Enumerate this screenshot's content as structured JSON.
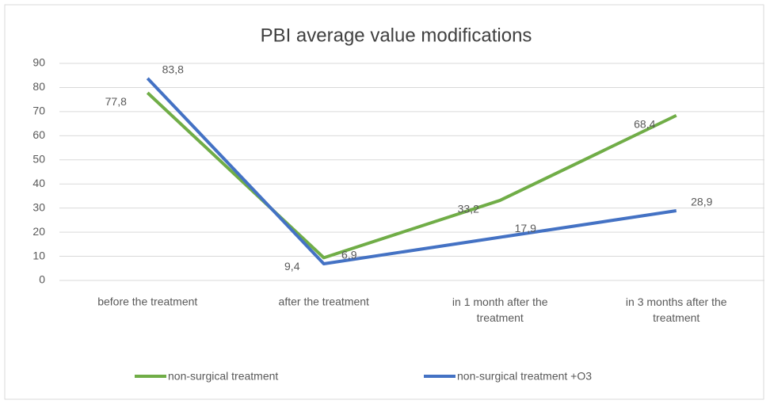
{
  "chart_data": {
    "type": "line",
    "title": "PBI average value modifications",
    "categories": [
      "before the treatment",
      "after the treatment",
      "in 1 month after the treatment",
      "in 3 months after the treatment"
    ],
    "series": [
      {
        "name": "non-surgical treatment",
        "color": "#70ad47",
        "values": [
          77.8,
          9.4,
          33.2,
          68.4
        ],
        "value_labels": [
          "77,8",
          "9,4",
          "33,2",
          "68,4"
        ]
      },
      {
        "name": "non-surgical treatment +O3",
        "color": "#4472c4",
        "values": [
          83.8,
          6.9,
          17.9,
          28.9
        ],
        "value_labels": [
          "83,8",
          "6,9",
          "17,9",
          "28,9"
        ]
      }
    ],
    "ylim": [
      0,
      90
    ],
    "yticks": [
      0,
      10,
      20,
      30,
      40,
      50,
      60,
      70,
      80,
      90
    ],
    "grid": true,
    "legend": "bottom"
  }
}
